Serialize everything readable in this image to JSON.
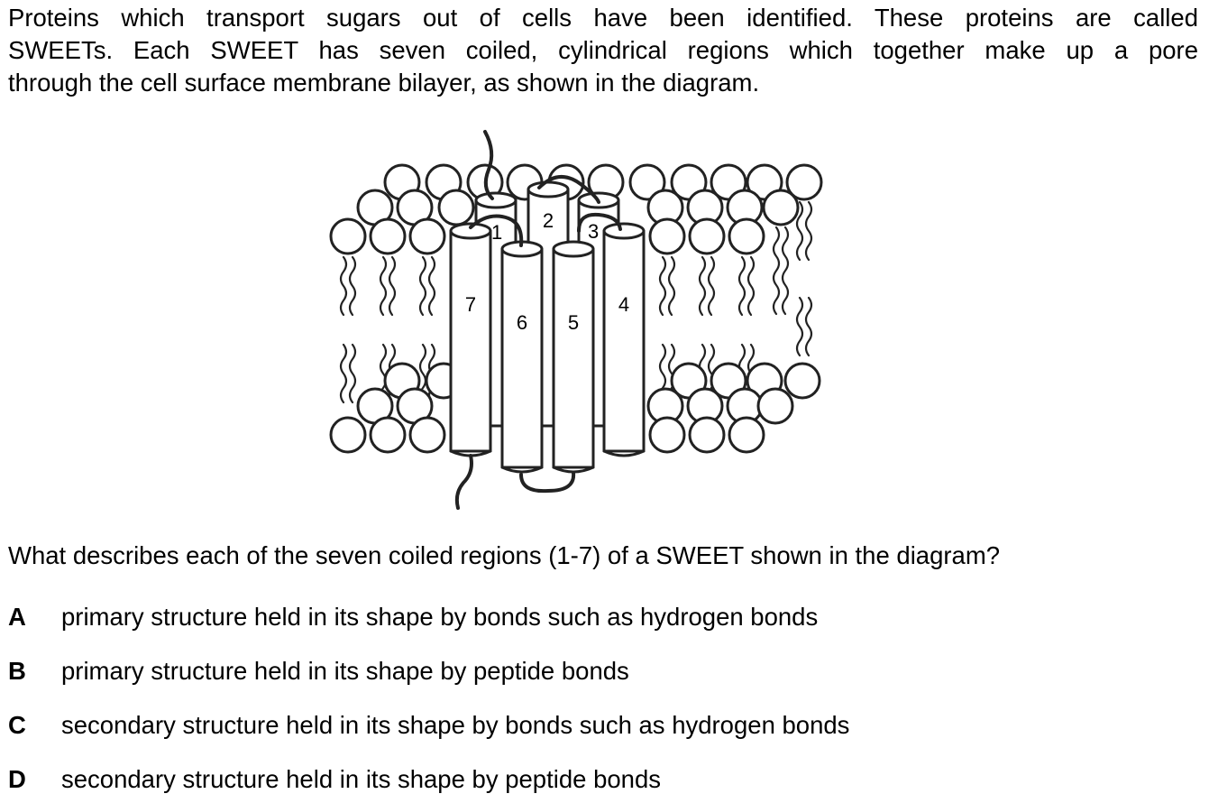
{
  "intro": {
    "lines": [
      "Proteins which transport sugars out of cells have been identified. These proteins are called",
      "SWEETs. Each SWEET has seven coiled, cylindrical regions which together make up a pore",
      "through the cell surface membrane bilayer, as shown in the diagram."
    ]
  },
  "diagram": {
    "helix_labels": [
      "1",
      "2",
      "3",
      "4",
      "5",
      "6",
      "7"
    ]
  },
  "question": "What describes each of the seven coiled regions (1-7) of a SWEET shown in the diagram?",
  "options": [
    {
      "letter": "A",
      "text": "primary structure held in its shape by bonds such as hydrogen bonds"
    },
    {
      "letter": "B",
      "text": "primary structure held in its shape by peptide bonds"
    },
    {
      "letter": "C",
      "text": "secondary structure held in its shape by bonds such as hydrogen bonds"
    },
    {
      "letter": "D",
      "text": "secondary structure held in its shape by peptide bonds"
    }
  ]
}
